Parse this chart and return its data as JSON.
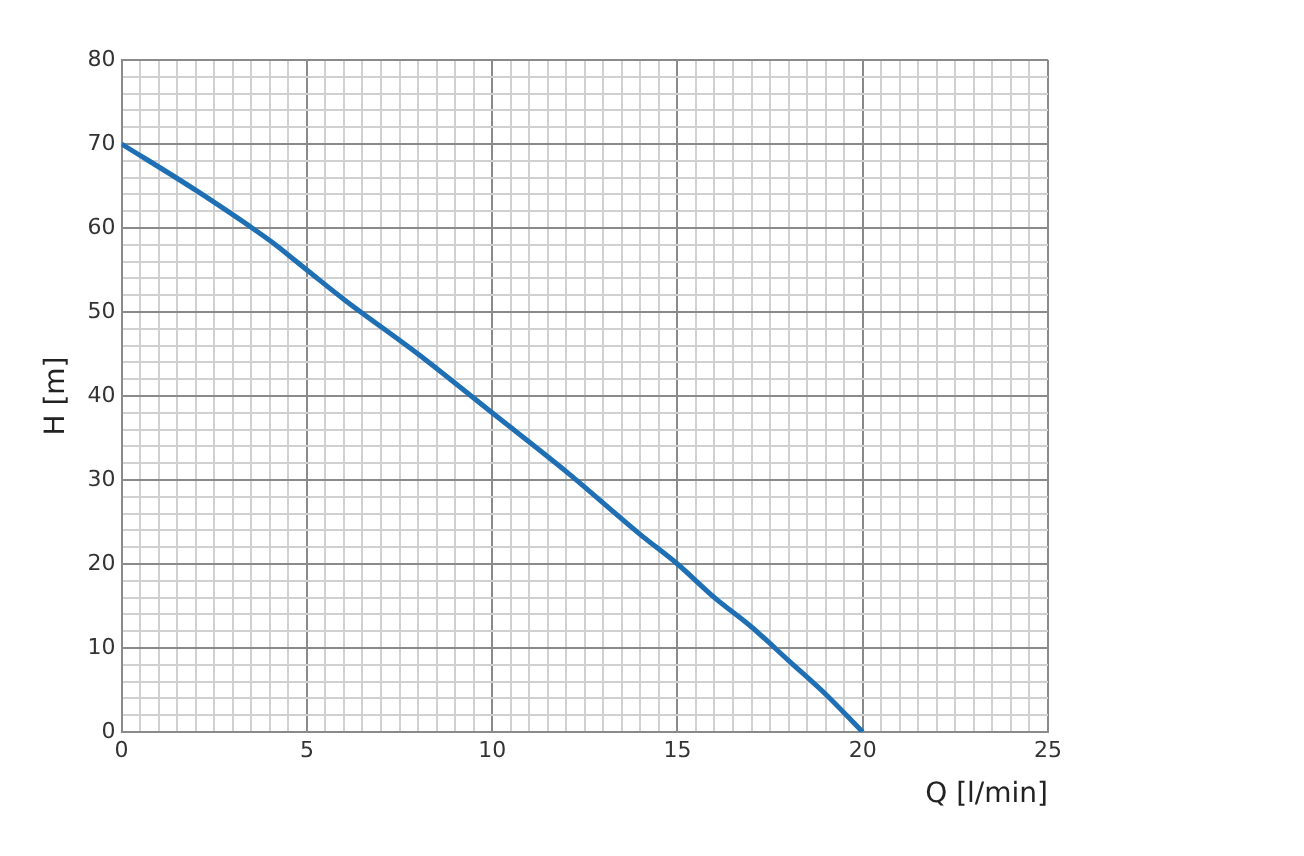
{
  "chart_data": {
    "type": "line",
    "xlabel": "Q [l/min]",
    "ylabel": "H [m]",
    "x": [
      0,
      2,
      4,
      5,
      6,
      8,
      10,
      12,
      14,
      15,
      16,
      17,
      18,
      19,
      20
    ],
    "series": [
      {
        "color": "#1f6fb4",
        "values": [
          70,
          64.5,
          58.5,
          55,
          51.5,
          45,
          38,
          31,
          23.5,
          20,
          16,
          12.5,
          8.5,
          4.5,
          0
        ]
      }
    ],
    "xlim": [
      0,
      25
    ],
    "ylim": [
      0,
      80
    ],
    "xticks": [
      0,
      {
        "value": 0.5,
        "label": null
      },
      {
        "value": 1,
        "label": null
      },
      {
        "value": 1.5,
        "label": null
      },
      {
        "value": 2,
        "label": null
      },
      {
        "value": 2.5,
        "label": null
      },
      {
        "value": 3,
        "label": null
      },
      {
        "value": 3.5,
        "label": null
      },
      {
        "value": 4,
        "label": null
      },
      {
        "value": 4.5,
        "label": null
      },
      5,
      {
        "value": 5.5,
        "label": null
      },
      {
        "value": 6,
        "label": null
      },
      {
        "value": 6.5,
        "label": null
      },
      {
        "value": 7,
        "label": null
      },
      {
        "value": 7.5,
        "label": null
      },
      {
        "value": 8,
        "label": null
      },
      {
        "value": 8.5,
        "label": null
      },
      {
        "value": 9,
        "label": null
      },
      {
        "value": 9.5,
        "label": null
      },
      10,
      {
        "value": 10.5,
        "label": null
      },
      {
        "value": 11,
        "label": null
      },
      {
        "value": 11.5,
        "label": null
      },
      {
        "value": 12,
        "label": null
      },
      {
        "value": 12.5,
        "label": null
      },
      {
        "value": 13,
        "label": null
      },
      {
        "value": 13.5,
        "label": null
      },
      {
        "value": 14,
        "label": null
      },
      {
        "value": 14.5,
        "label": null
      },
      15,
      {
        "value": 15.5,
        "label": null
      },
      {
        "value": 16,
        "label": null
      },
      {
        "value": 16.5,
        "label": null
      },
      {
        "value": 17,
        "label": null
      },
      {
        "value": 17.5,
        "label": null
      },
      {
        "value": 18,
        "label": null
      },
      {
        "value": 18.5,
        "label": null
      },
      {
        "value": 19,
        "label": null
      },
      {
        "value": 19.5,
        "label": null
      },
      20,
      {
        "value": 20.5,
        "label": null
      },
      {
        "value": 21,
        "label": null
      },
      {
        "value": 21.5,
        "label": null
      },
      {
        "value": 22,
        "label": null
      },
      {
        "value": 22.5,
        "label": null
      },
      {
        "value": 23,
        "label": null
      },
      {
        "value": 23.5,
        "label": null
      },
      {
        "value": 24,
        "label": null
      },
      {
        "value": 24.5,
        "label": null
      },
      25
    ],
    "yticks": [
      0,
      {
        "value": 2,
        "label": null
      },
      {
        "value": 4,
        "label": null
      },
      {
        "value": 6,
        "label": null
      },
      {
        "value": 8,
        "label": null
      },
      10,
      {
        "value": 12,
        "label": null
      },
      {
        "value": 14,
        "label": null
      },
      {
        "value": 16,
        "label": null
      },
      {
        "value": 18,
        "label": null
      },
      20,
      {
        "value": 22,
        "label": null
      },
      {
        "value": 24,
        "label": null
      },
      {
        "value": 26,
        "label": null
      },
      {
        "value": 28,
        "label": null
      },
      30,
      {
        "value": 32,
        "label": null
      },
      {
        "value": 34,
        "label": null
      },
      {
        "value": 36,
        "label": null
      },
      {
        "value": 38,
        "label": null
      },
      40,
      {
        "value": 42,
        "label": null
      },
      {
        "value": 44,
        "label": null
      },
      {
        "value": 46,
        "label": null
      },
      {
        "value": 48,
        "label": null
      },
      50,
      {
        "value": 52,
        "label": null
      },
      {
        "value": 54,
        "label": null
      },
      {
        "value": 56,
        "label": null
      },
      {
        "value": 58,
        "label": null
      },
      60,
      {
        "value": 62,
        "label": null
      },
      {
        "value": 64,
        "label": null
      },
      {
        "value": 66,
        "label": null
      },
      {
        "value": 68,
        "label": null
      },
      70,
      {
        "value": 72,
        "label": null
      },
      {
        "value": 74,
        "label": null
      },
      {
        "value": 76,
        "label": null
      },
      {
        "value": 78,
        "label": null
      },
      80
    ],
    "grid": true,
    "marker": "none",
    "line_style": "solid"
  }
}
